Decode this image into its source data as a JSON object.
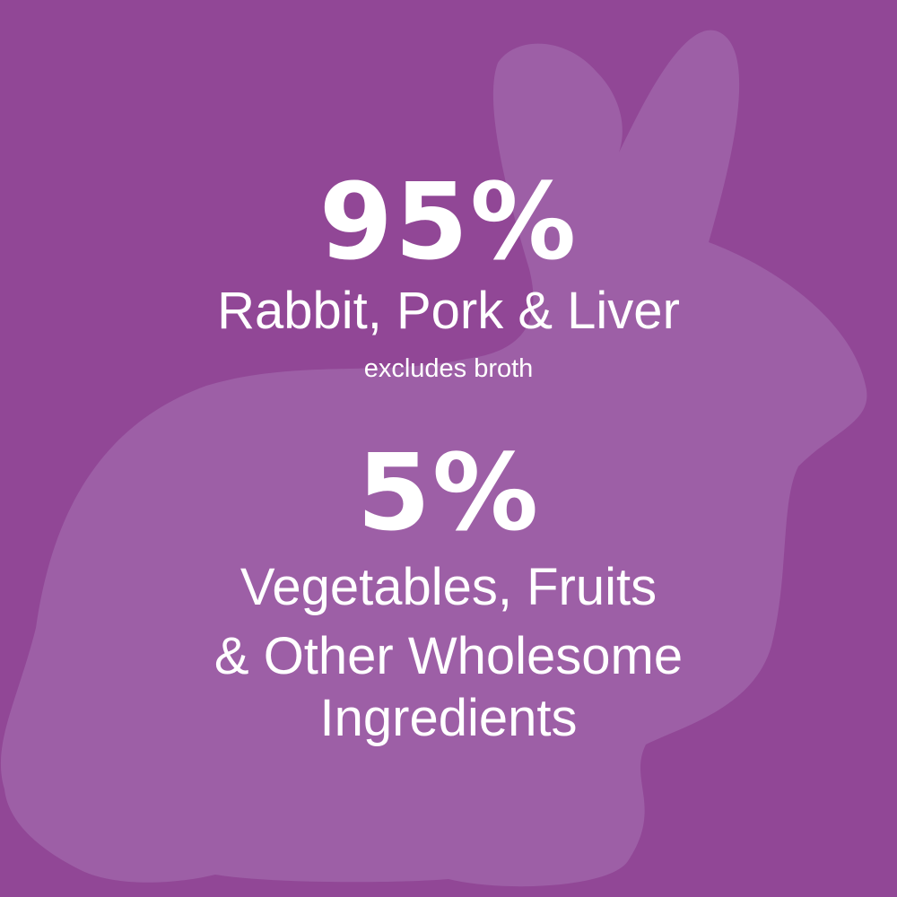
{
  "colors": {
    "background": "#914796",
    "silhouette": "#9d5fa6",
    "text": "#ffffff"
  },
  "background_icon": "rabbit-silhouette",
  "stat1": {
    "value": "95%",
    "label": "Rabbit, Pork & Liver",
    "note": "excludes broth"
  },
  "stat2": {
    "value": "5%",
    "label_lines": [
      "Vegetables, Fruits",
      "& Other Wholesome",
      "Ingredients"
    ]
  }
}
